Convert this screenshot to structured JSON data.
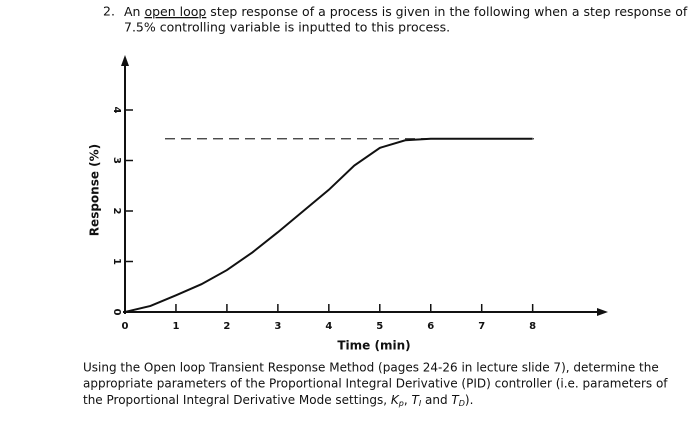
{
  "question": {
    "number": "2.",
    "line1": [
      "An ",
      "open loop",
      " step response of a process is given in the following when a step response of"
    ],
    "line2": "7.5% controlling variable is inputted to this process."
  },
  "chart_data": {
    "type": "line",
    "ylabel": "Response (%)",
    "xlabel": "Time (min)",
    "x": [
      0,
      0.5,
      1,
      1.5,
      2,
      2.5,
      3,
      3.5,
      4,
      4.5,
      5,
      5.5,
      6,
      6.5,
      7,
      7.5,
      8
    ],
    "series": [
      {
        "color": "#111111",
        "values": [
          0,
          0.12,
          0.33,
          0.55,
          0.83,
          1.18,
          1.58,
          2.0,
          2.42,
          2.9,
          3.25,
          3.4,
          3.43,
          3.43,
          3.43,
          3.43,
          3.43
        ]
      }
    ],
    "reference_line": 3.43,
    "xlim": [
      0,
      9.4
    ],
    "ylim": [
      0,
      5
    ],
    "xticks": [
      0,
      1,
      2,
      3,
      4,
      5,
      6,
      7,
      8
    ],
    "yticks": [
      0,
      1,
      2,
      3,
      4
    ]
  },
  "instruction": {
    "text": [
      "Using the Open loop Transient Response Method (pages 24-26 in lecture slide 7), determine the",
      "appropriate parameters of the Proportional Integral Derivative (PID) controller (i.e. parameters of",
      "the Proportional Integral Derivative Mode settings, "
    ],
    "symbols": [
      {
        "main": "K",
        "sub": "p"
      },
      {
        "main": "T",
        "sub": "I"
      },
      {
        "main": "T",
        "sub": "D"
      }
    ],
    "joins": [
      ", ",
      " and ",
      ")."
    ]
  }
}
